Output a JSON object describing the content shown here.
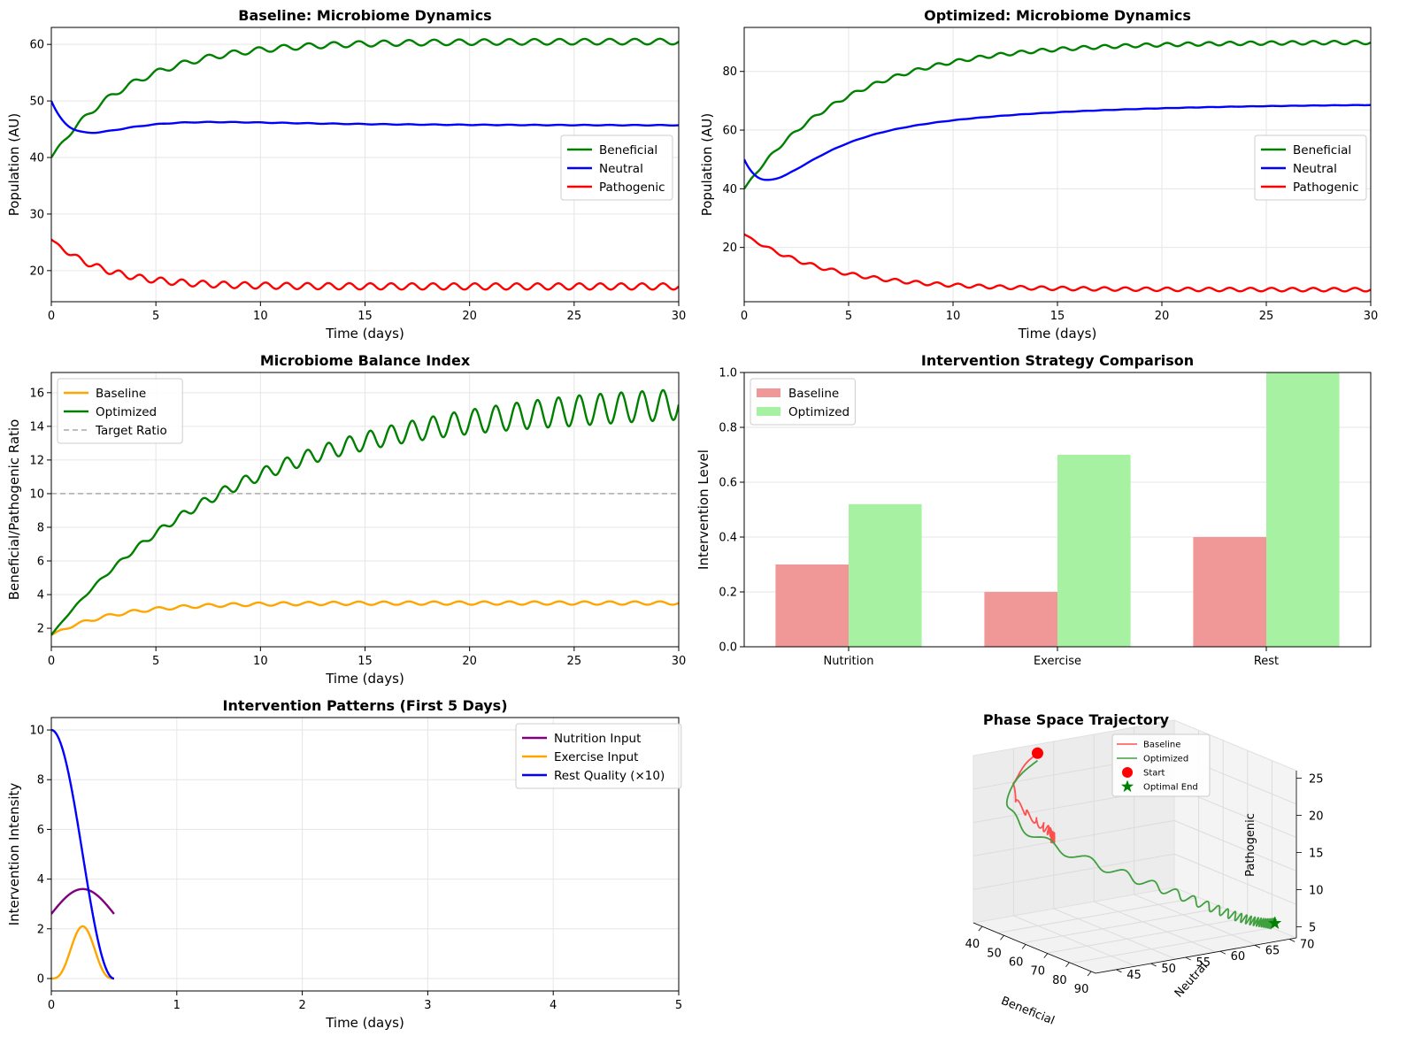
{
  "chart_data": [
    {
      "id": "p1",
      "type": "line",
      "title": "Baseline: Microbiome Dynamics",
      "xlabel": "Time (days)",
      "ylabel": "Population (AU)",
      "xlim": [
        0,
        30
      ],
      "ylim": [
        14.5,
        63
      ],
      "xticks": [
        "0",
        "5",
        "10",
        "15",
        "20",
        "25",
        "30"
      ],
      "xtick_values": [
        0,
        5,
        10,
        15,
        20,
        25,
        30
      ],
      "yticks": [
        "20",
        "30",
        "40",
        "50",
        "60"
      ],
      "ytick_values": [
        20,
        30,
        40,
        50,
        60
      ],
      "grid": true,
      "legend": "center-right",
      "series": [
        {
          "name": "Beneficial",
          "color": "#008000",
          "model": "rise",
          "start": 40,
          "end": 60.5,
          "tau": 3.8,
          "amp": 0.5,
          "period": 1.2
        },
        {
          "name": "Neutral",
          "color": "#0000ff",
          "model": "dip",
          "start": 50,
          "end": 45.7,
          "tau": 5,
          "dip": 12,
          "dtau": 1.5,
          "amp": 0.05,
          "period": 1.2
        },
        {
          "name": "Pathogenic",
          "color": "#ff0000",
          "model": "decay",
          "start": 25.5,
          "end": 17.2,
          "tau": 2.5,
          "amp": 0.55,
          "period": 1.0
        }
      ]
    },
    {
      "id": "p2",
      "type": "line",
      "title": "Optimized: Microbiome Dynamics",
      "xlabel": "Time (days)",
      "ylabel": "Population (AU)",
      "xlim": [
        0,
        30
      ],
      "ylim": [
        1.5,
        95
      ],
      "xticks": [
        "0",
        "5",
        "10",
        "15",
        "20",
        "25",
        "30"
      ],
      "xtick_values": [
        0,
        5,
        10,
        15,
        20,
        25,
        30
      ],
      "yticks": [
        "20",
        "40",
        "60",
        "80"
      ],
      "ytick_values": [
        20,
        40,
        60,
        80
      ],
      "grid": true,
      "legend": "center-right",
      "series": [
        {
          "name": "Beneficial",
          "color": "#008000",
          "model": "rise",
          "start": 40,
          "end": 90,
          "tau": 5,
          "amp": 0.6,
          "period": 1.0
        },
        {
          "name": "Neutral",
          "color": "#0000ff",
          "model": "dip",
          "start": 50,
          "end": 69,
          "tau": 8,
          "dip": 27,
          "dtau": 1.5,
          "amp": 0.05,
          "period": 1.0
        },
        {
          "name": "Pathogenic",
          "color": "#ff0000",
          "model": "decay",
          "start": 24.5,
          "end": 5.6,
          "tau": 4,
          "amp": 0.6,
          "period": 1.0
        }
      ]
    },
    {
      "id": "p3",
      "type": "line",
      "title": "Microbiome Balance Index",
      "xlabel": "Time (days)",
      "ylabel": "Beneficial/Pathogenic Ratio",
      "xlim": [
        0,
        30
      ],
      "ylim": [
        0.9,
        17.2
      ],
      "xticks": [
        "0",
        "5",
        "10",
        "15",
        "20",
        "25",
        "30"
      ],
      "xtick_values": [
        0,
        5,
        10,
        15,
        20,
        25,
        30
      ],
      "yticks": [
        "2",
        "4",
        "6",
        "8",
        "10",
        "12",
        "14",
        "16"
      ],
      "ytick_values": [
        2,
        4,
        6,
        8,
        10,
        12,
        14,
        16
      ],
      "grid": true,
      "legend": "upper-left",
      "series": [
        {
          "name": "Baseline",
          "color": "#ffa500",
          "model": "rise",
          "start": 1.6,
          "end": 3.5,
          "tau": 3,
          "amp": 0.1,
          "period": 1.2
        },
        {
          "name": "Optimized",
          "color": "#008000",
          "model": "ratio",
          "start": 1.6,
          "end": 15.8,
          "tau": 9,
          "amp": 0.9,
          "period": 1.0
        },
        {
          "name": "Target Ratio",
          "color": "#aaaaaa",
          "model": "const",
          "value": 10,
          "dashed": true
        }
      ]
    },
    {
      "id": "p4",
      "type": "bar",
      "title": "Intervention Strategy Comparison",
      "xlabel": "",
      "ylabel": "Intervention Level",
      "categories": [
        "Nutrition",
        "Exercise",
        "Rest"
      ],
      "ylim": [
        0,
        1.0
      ],
      "yticks": [
        "0.0",
        "0.2",
        "0.4",
        "0.6",
        "0.8",
        "1.0"
      ],
      "ytick_values": [
        0,
        0.2,
        0.4,
        0.6,
        0.8,
        1.0
      ],
      "grid": true,
      "legend": "upper-left",
      "series": [
        {
          "name": "Baseline",
          "color": "#f09898",
          "values": [
            0.3,
            0.2,
            0.4
          ]
        },
        {
          "name": "Optimized",
          "color": "#a6f2a2",
          "values": [
            0.52,
            0.7,
            1.0
          ]
        }
      ]
    },
    {
      "id": "p5",
      "type": "line",
      "title": "Intervention Patterns (First 5 Days)",
      "xlabel": "Time (days)",
      "ylabel": "Intervention Intensity",
      "xlim": [
        0,
        5
      ],
      "ylim": [
        -0.5,
        10.5
      ],
      "xticks": [
        "0",
        "1",
        "2",
        "3",
        "4",
        "5"
      ],
      "xtick_values": [
        0,
        1,
        2,
        3,
        4,
        5
      ],
      "yticks": [
        "0",
        "2",
        "4",
        "6",
        "8",
        "10"
      ],
      "ytick_values": [
        0,
        2,
        4,
        6,
        8,
        10
      ],
      "grid": true,
      "legend": "upper-right",
      "series": [
        {
          "name": "Nutrition Input",
          "color": "#800080",
          "model": "nutrition",
          "tmax": 0.5
        },
        {
          "name": "Exercise Input",
          "color": "#ffa500",
          "model": "exercise",
          "tmax": 0.5
        },
        {
          "name": "Rest Quality (×10)",
          "color": "#0000ff",
          "model": "rest",
          "tmax": 0.5
        }
      ]
    },
    {
      "id": "p6",
      "type": "scatter",
      "title": "Phase Space Trajectory",
      "xlabel": "Beneficial",
      "ylabel": "Neutral",
      "zlabel": "Pathogenic",
      "xticks": [
        "40",
        "50",
        "60",
        "70",
        "80",
        "90"
      ],
      "yticks": [
        "45",
        "50",
        "55",
        "60",
        "65",
        "70"
      ],
      "zticks": [
        "5",
        "10",
        "15",
        "20",
        "25"
      ],
      "legend": "top",
      "legend_items": [
        {
          "name": "Baseline",
          "color": "#ff5050",
          "kind": "line"
        },
        {
          "name": "Optimized",
          "color": "#40a040",
          "kind": "line"
        },
        {
          "name": "Start",
          "color": "#ff0000",
          "kind": "dot"
        },
        {
          "name": "Optimal End",
          "color": "#008000",
          "kind": "star"
        }
      ]
    }
  ]
}
